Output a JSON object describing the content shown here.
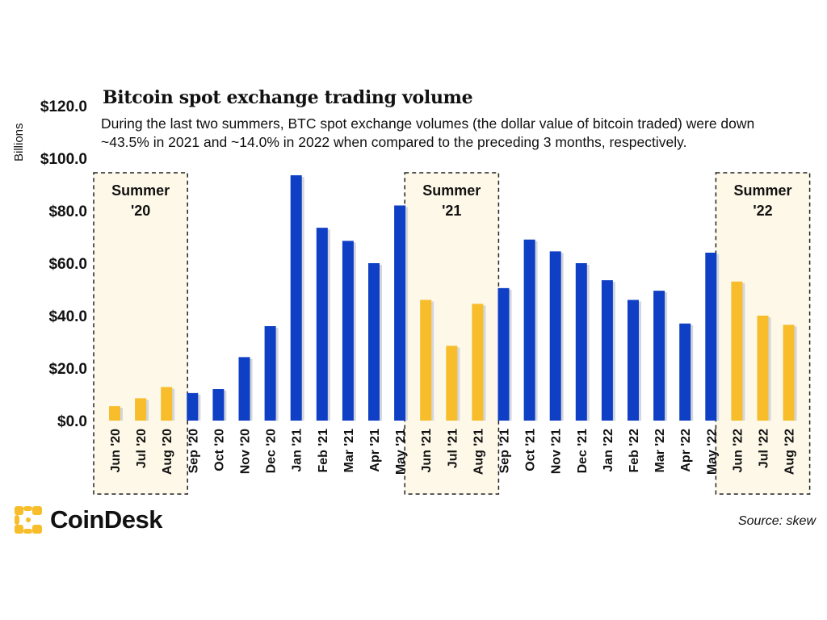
{
  "chart_data": {
    "type": "bar",
    "title": "Bitcoin spot exchange trading volume",
    "subtitle": "During the last two summers, BTC spot exchange volumes (the dollar value of bitcoin traded) were down ~43.5% in 2021 and ~14.0% in 2022 when compared to the preceding 3 months, respectively.",
    "ylabel": "Billions",
    "ylim": [
      0,
      120
    ],
    "yticks": [
      "$0.0",
      "$20.0",
      "$40.0",
      "$60.0",
      "$80.0",
      "$100.0",
      "$120.0"
    ],
    "categories": [
      "Jun '20",
      "Jul '20",
      "Aug '20",
      "Sep '20",
      "Oct '20",
      "Nov '20",
      "Dec '20",
      "Jan '21",
      "Feb '21",
      "Mar '21",
      "Apr '21",
      "May '21",
      "Jun '21",
      "Jul '21",
      "Aug '21",
      "Sep '21",
      "Oct '21",
      "Nov '21",
      "Dec '21",
      "Jan '22",
      "Feb '22",
      "Mar '22",
      "Apr '22",
      "May '22",
      "Jun '22",
      "Jul '22",
      "Aug '22"
    ],
    "values": [
      5.5,
      8.5,
      12.8,
      10.5,
      12,
      24.2,
      36,
      93.5,
      73.5,
      68.5,
      60,
      82,
      46,
      28.5,
      44.5,
      50.5,
      69,
      64.5,
      60,
      53.5,
      46,
      49.5,
      37,
      64,
      53,
      40,
      36.5
    ],
    "summer": [
      true,
      true,
      true,
      false,
      false,
      false,
      false,
      false,
      false,
      false,
      false,
      false,
      true,
      true,
      true,
      false,
      false,
      false,
      false,
      false,
      false,
      false,
      false,
      false,
      true,
      true,
      true
    ],
    "colors": {
      "regular": "#0E3FC4",
      "summer": "#F7BD2A",
      "summer_box": "#FDF8E8",
      "shadow": "#D3D6DC"
    },
    "summer_labels": [
      {
        "line1": "Summer",
        "line2": "'20"
      },
      {
        "line1": "Summer",
        "line2": "'21"
      },
      {
        "line1": "Summer",
        "line2": "'22"
      }
    ],
    "grid": false,
    "legend": "none"
  },
  "brand": {
    "name": "CoinDesk",
    "icon": "coindesk-logo-icon",
    "color": "#F7BD2A"
  },
  "source": "Source: skew"
}
